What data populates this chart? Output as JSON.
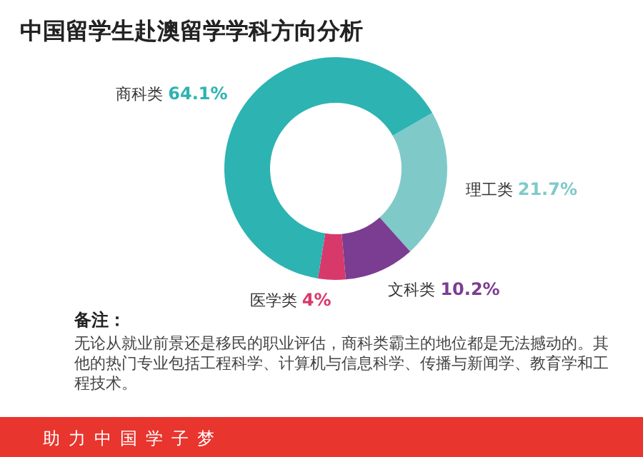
{
  "chart_data": {
    "type": "donut",
    "title": "中国留学生赴澳留学学科方向分析",
    "categories": [
      "理工类",
      "文科类",
      "医学类",
      "商科类"
    ],
    "values": [
      21.7,
      10.2,
      4,
      64.1
    ],
    "colors": [
      "#7fcac9",
      "#7b3d91",
      "#d8396b",
      "#2db3b2"
    ],
    "value_labels": [
      "21.7%",
      "10.2%",
      "4%",
      "64.1%"
    ],
    "annotations": [
      "备注：",
      "无论从就业前景还是移民的职业评估，商科类霸主的地位都是无法撼动的。其他的热门专业包括工程科学、计算机与信息科学、传播与新闻学、教育学和工程技术。",
      "助力中国学子梦"
    ]
  }
}
